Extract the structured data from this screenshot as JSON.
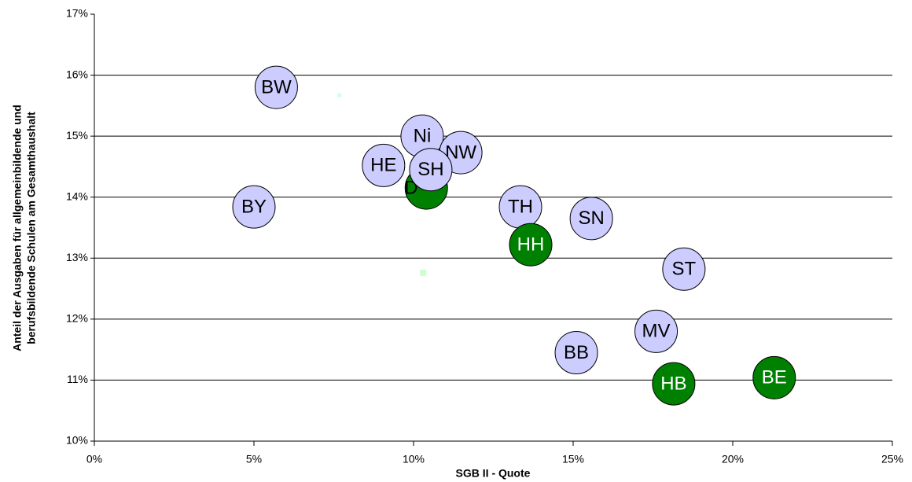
{
  "chart_data": {
    "type": "scatter",
    "xlabel": "SGB II - Quote",
    "ylabel": [
      "Anteil der Ausgaben für allgemeinbildende und",
      "berufsbildende Schulen am Gesamthaushalt"
    ],
    "xlim": [
      0,
      25
    ],
    "xticks": [
      {
        "value": 0,
        "label": "0%"
      },
      {
        "value": 5,
        "label": "5%"
      },
      {
        "value": 10,
        "label": "10%"
      },
      {
        "value": 15,
        "label": "15%"
      },
      {
        "value": 20,
        "label": "20%"
      },
      {
        "value": 25,
        "label": "25%"
      }
    ],
    "ylim": [
      10,
      17
    ],
    "yticks": [
      {
        "value": 10,
        "label": "10%"
      },
      {
        "value": 11,
        "label": "11%"
      },
      {
        "value": 12,
        "label": "12%"
      },
      {
        "value": 13,
        "label": "13%"
      },
      {
        "value": 14,
        "label": "14%"
      },
      {
        "value": 15,
        "label": "15%"
      },
      {
        "value": 16,
        "label": "16%"
      },
      {
        "value": 17,
        "label": "17%"
      }
    ],
    "grid": true,
    "series": [
      {
        "color": "#008000",
        "label_color": "#000000",
        "marker": "bubble",
        "labels": [
          "D**"
        ],
        "x": [
          10.4
        ],
        "values": [
          14.15
        ]
      },
      {
        "color": "#ccccff",
        "label_color": "#000000",
        "marker": "bubble",
        "labels": [
          "BW",
          "BY",
          "HE",
          "Ni",
          "NW",
          "SH",
          "TH",
          "SN",
          "ST",
          "MV",
          "BB"
        ],
        "x": [
          5.7,
          5.0,
          9.06,
          10.27,
          11.48,
          10.54,
          13.35,
          15.57,
          18.47,
          17.6,
          15.1
        ],
        "values": [
          15.8,
          13.84,
          14.52,
          15.0,
          14.73,
          14.45,
          13.84,
          13.65,
          12.82,
          11.8,
          11.45
        ]
      },
      {
        "color": "#008000",
        "label_color": "#ffffff",
        "marker": "bubble",
        "labels": [
          "HH",
          "HB",
          "BE"
        ],
        "x": [
          13.67,
          18.15,
          21.3
        ],
        "values": [
          13.22,
          10.94,
          11.04
        ]
      },
      {
        "color": "#ccffff",
        "marker": "dot",
        "x": [
          7.68
        ],
        "values": [
          15.67
        ]
      },
      {
        "color": "#ccffcc",
        "marker": "square",
        "x": [
          10.3
        ],
        "values": [
          12.76
        ]
      }
    ]
  }
}
